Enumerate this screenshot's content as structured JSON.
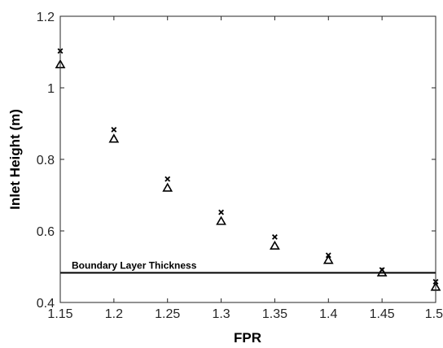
{
  "chart_data": {
    "type": "scatter",
    "title": "",
    "xlabel": "FPR",
    "ylabel": "Inlet Height (m)",
    "xlim": [
      1.15,
      1.5
    ],
    "ylim": [
      0.4,
      1.2
    ],
    "x_ticks": [
      1.15,
      1.2,
      1.25,
      1.3,
      1.35,
      1.4,
      1.45,
      1.5
    ],
    "x_tick_labels": [
      "1.15",
      "1.2",
      "1.25",
      "1.3",
      "1.35",
      "1.4",
      "1.45",
      "1.5"
    ],
    "y_ticks": [
      0.4,
      0.6,
      0.8,
      1.0,
      1.2
    ],
    "y_tick_labels": [
      "0.4",
      "0.6",
      "0.8",
      "1",
      "1.2"
    ],
    "grid": false,
    "series": [
      {
        "marker": "x",
        "color": "#000000",
        "x": [
          1.15,
          1.2,
          1.25,
          1.3,
          1.35,
          1.4,
          1.45,
          1.5
        ],
        "y": [
          1.103,
          0.883,
          0.745,
          0.652,
          0.583,
          0.532,
          0.491,
          0.458
        ]
      },
      {
        "marker": "triangle",
        "color": "#000000",
        "x": [
          1.15,
          1.2,
          1.25,
          1.3,
          1.35,
          1.4,
          1.45,
          1.5
        ],
        "y": [
          1.065,
          0.857,
          0.72,
          0.627,
          0.558,
          0.518,
          0.483,
          0.443
        ]
      }
    ],
    "reference_lines": [
      {
        "type": "horizontal",
        "y": 0.483,
        "label": "Boundary Layer Thickness",
        "color": "#000000"
      }
    ]
  }
}
